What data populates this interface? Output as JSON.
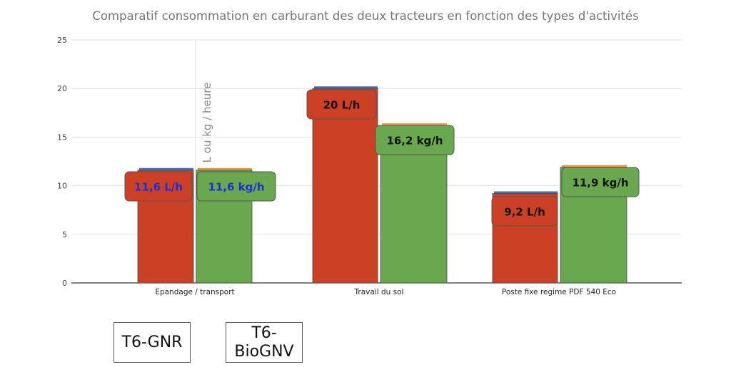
{
  "chart_data": {
    "type": "bar",
    "title": "Comparatif consommation en carburant des deux tracteurs en fonction des types d'activités",
    "ylabel": "L ou kg / heure",
    "categories": [
      "Epandage / transport",
      "Travail du sol",
      "Poste fixe regime PDF 540 Eco"
    ],
    "series": [
      {
        "name": "T6-GNR",
        "values": [
          11.6,
          20,
          9.2
        ],
        "labels": [
          "11,6 L/h",
          "20 L/h",
          "9,2 L/h"
        ],
        "color": "#cc4125"
      },
      {
        "name": "T6-BioGNV",
        "values": [
          11.6,
          16.2,
          11.9
        ],
        "labels": [
          "11,6 kg/h",
          "16,2 kg/h",
          "11,9 kg/h"
        ],
        "color": "#6aa84f"
      }
    ],
    "ylim": [
      0,
      25
    ],
    "yticks": [
      0,
      5,
      10,
      15,
      20,
      25
    ],
    "grid": true,
    "legend_position": "bottom-left",
    "label_colors": {
      "first_category": "#1f2fd6",
      "default": "#111111"
    },
    "underlay_colors": {
      "T6-GNR": "#3d6fc4",
      "T6-BioGNV": "#f09848"
    }
  },
  "legend": {
    "gnr_label": "T6-GNR",
    "biognv_label": "T6-BioGNV"
  }
}
